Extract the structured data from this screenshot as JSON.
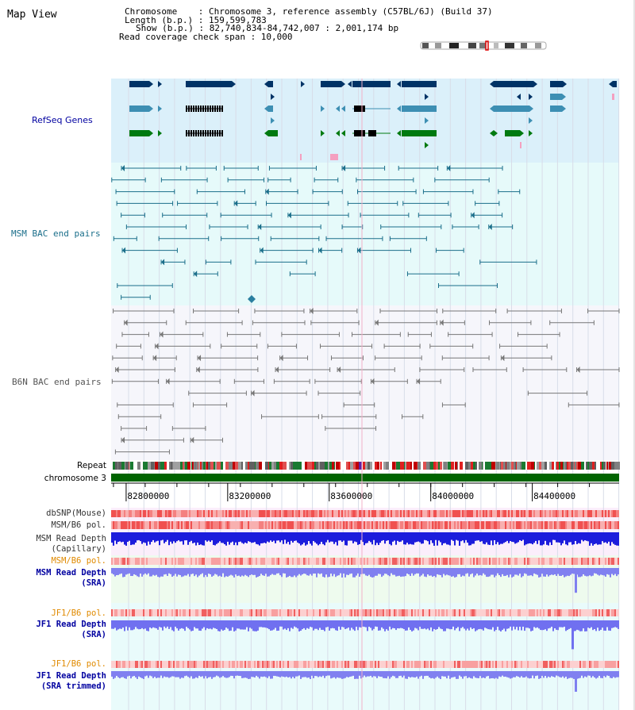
{
  "page_title": "Map View",
  "chromosome_info": {
    "chromosome_line": "Chromosome    : Chromosome 3, reference assembly (C57BL/6J) (Build 37)",
    "length_line": "Length (b.p.) : 159,599,783",
    "show_line": "Show (b.p.) : 82,740,834-84,742,007 : 2,001,174 bp",
    "coverage_line": "Read coverage check span : 10,000"
  },
  "tracks": {
    "refseq_genes": "RefSeq Genes",
    "msm_bac": "MSM BAC end pairs",
    "b6n_bac": "B6N BAC end pairs",
    "repeat": "Repeat",
    "chromosome": "chromosome 3",
    "dbsnp": "dbSNP(Mouse)",
    "msm_b6_pol_1": "MSM/B6 pol.",
    "msm_depth_cap_1": "MSM Read Depth",
    "msm_depth_cap_2": "(Capillary)",
    "msm_b6_pol_2": "MSM/B6 pol.",
    "msm_depth_sra_1": "MSM Read Depth",
    "msm_depth_sra_2": "(SRA)",
    "jf1_b6_pol_1": "JF1/B6 pol.",
    "jf1_depth_sra_1": "JF1 Read Depth",
    "jf1_depth_sra_2": "(SRA)",
    "jf1_b6_pol_2": "JF1/B6 pol.",
    "jf1_depth_trim_1": "JF1 Read Depth",
    "jf1_depth_trim_2": "(SRA trimmed)"
  },
  "axis": {
    "ticks": [
      "82800000",
      "83200000",
      "83600000",
      "84000000",
      "84400000"
    ],
    "tick_values": [
      82800000,
      83200000,
      83600000,
      84000000,
      84400000
    ],
    "range": [
      82740834,
      84742007
    ]
  },
  "colors": {
    "refseq_bg": "#dbf0fa",
    "msm_bg": "#e6fafa",
    "b6n_bg": "#f6f6fb",
    "chrom_green": "#006400",
    "gene_navy": "#003366",
    "gene_teal": "#3d8fb3",
    "gene_green": "#007a10",
    "msm_line": "#1a6e8a",
    "b6n_line": "#777777",
    "orange_label": "#e08a00",
    "blue_label": "#0000a0",
    "depth_blue": "#2020e0",
    "depth_lightblue": "#8080f0"
  }
}
